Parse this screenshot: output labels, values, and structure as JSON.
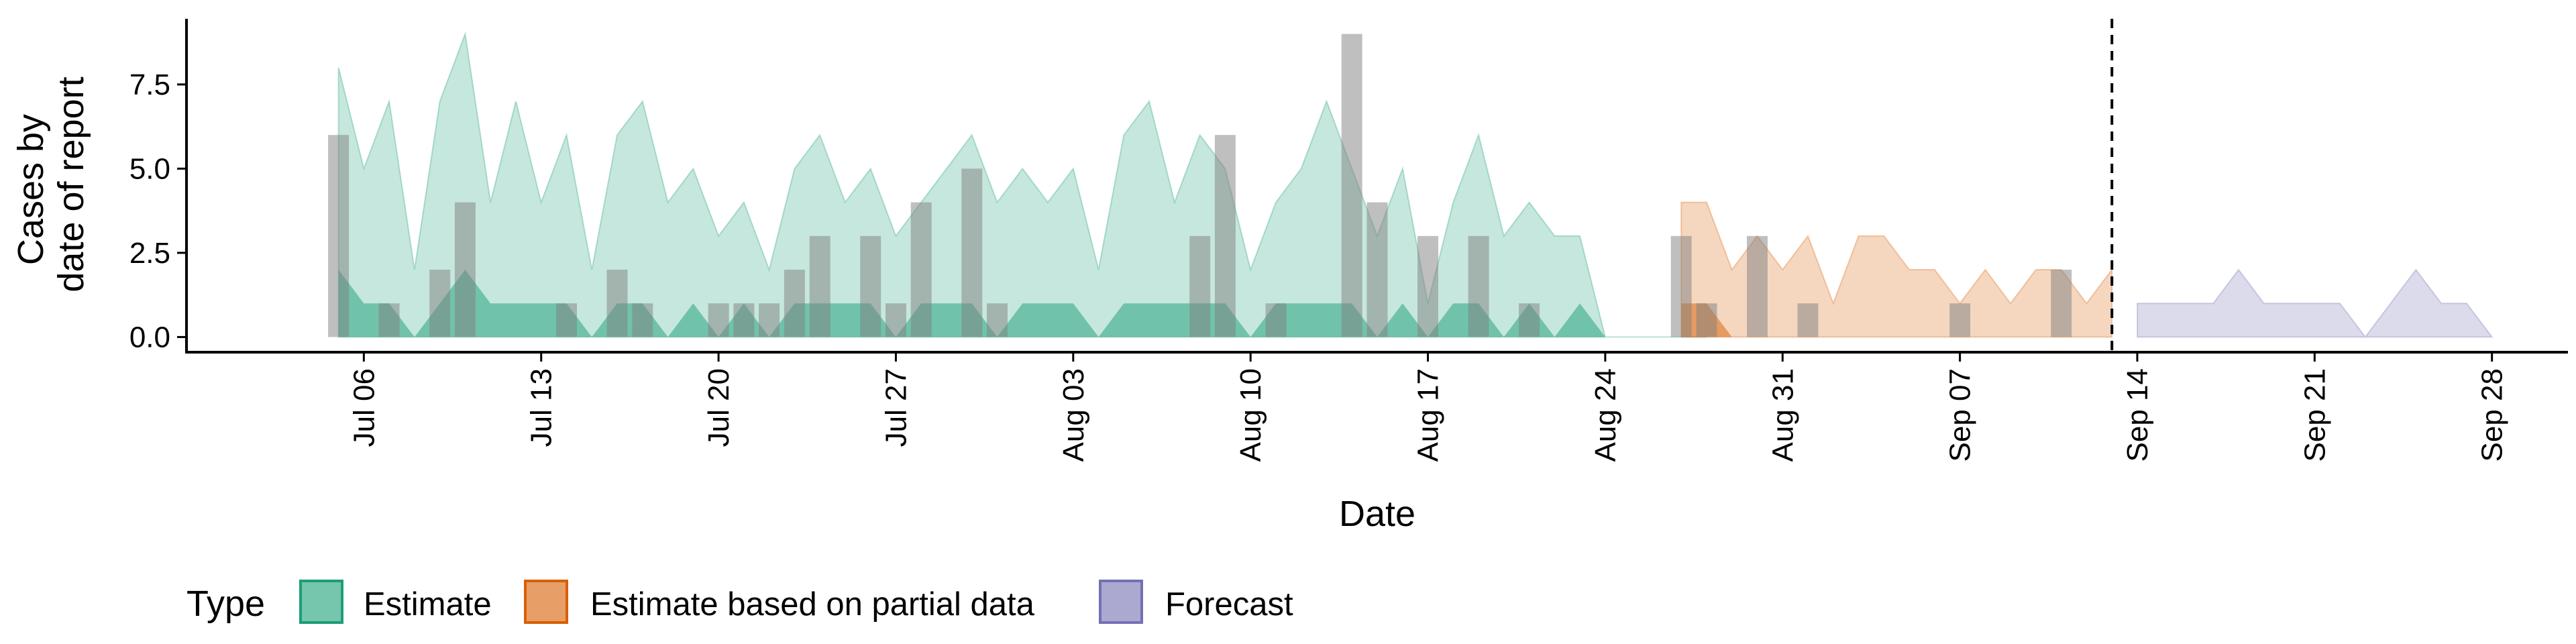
{
  "chart_data": {
    "type": "area",
    "xlabel": "Date",
    "ylabel_lines": [
      "Cases by",
      "date of report"
    ],
    "x_ticks": [
      {
        "date": "2020-07-06",
        "label": "Jul 06"
      },
      {
        "date": "2020-07-13",
        "label": "Jul 13"
      },
      {
        "date": "2020-07-20",
        "label": "Jul 20"
      },
      {
        "date": "2020-07-27",
        "label": "Jul 27"
      },
      {
        "date": "2020-08-03",
        "label": "Aug 03"
      },
      {
        "date": "2020-08-10",
        "label": "Aug 10"
      },
      {
        "date": "2020-08-17",
        "label": "Aug 17"
      },
      {
        "date": "2020-08-24",
        "label": "Aug 24"
      },
      {
        "date": "2020-08-31",
        "label": "Aug 31"
      },
      {
        "date": "2020-09-07",
        "label": "Sep 07"
      },
      {
        "date": "2020-09-14",
        "label": "Sep 14"
      },
      {
        "date": "2020-09-21",
        "label": "Sep 21"
      },
      {
        "date": "2020-09-28",
        "label": "Sep 28"
      }
    ],
    "y_ticks": [
      {
        "value": 0,
        "label": "0.0"
      },
      {
        "value": 2.5,
        "label": "2.5"
      },
      {
        "value": 5,
        "label": "5.0"
      },
      {
        "value": 7.5,
        "label": "7.5"
      }
    ],
    "xlim": [
      "2020-06-29",
      "2020-10-01"
    ],
    "ylim": [
      -0.45,
      9.45
    ],
    "vline_date": "2020-09-13",
    "legend": {
      "title": "Type",
      "position": "bottom",
      "items": [
        {
          "label": "Estimate",
          "fill": "#1b9e77",
          "stroke": "#1b9e77"
        },
        {
          "label": "Estimate based on partial data",
          "fill": "#d95f02",
          "stroke": "#d95f02"
        },
        {
          "label": "Forecast",
          "fill": "#7570b3",
          "stroke": "#7570b3"
        }
      ]
    },
    "colors": {
      "estimate": "#1b9e77",
      "partial": "#d95f02",
      "forecast": "#7570b3",
      "bars": "#808080"
    },
    "series": [
      {
        "name": "Estimate",
        "start_date": "2020-07-05",
        "lower90": [
          0,
          0,
          0,
          0,
          0,
          0,
          0,
          0,
          0,
          0,
          0,
          0,
          0,
          0,
          0,
          0,
          0,
          0,
          0,
          0,
          0,
          0,
          0,
          0,
          0,
          0,
          0,
          0,
          0,
          0,
          0,
          0,
          0,
          0,
          0,
          0,
          0,
          0,
          0,
          0,
          0,
          0,
          0,
          0,
          0,
          0,
          0,
          0,
          0,
          0,
          0,
          0,
          0,
          0,
          0
        ],
        "upper90": [
          8,
          5,
          7,
          2,
          7,
          9,
          4,
          7,
          4,
          6,
          2,
          6,
          7,
          4,
          5,
          3,
          4,
          2,
          5,
          6,
          4,
          5,
          3,
          4,
          5,
          6,
          4,
          5,
          4,
          5,
          2,
          6,
          7,
          4,
          6,
          5,
          2,
          4,
          5,
          7,
          5,
          3,
          5,
          1,
          4,
          6,
          3,
          4,
          3,
          3,
          0,
          0,
          0,
          0,
          0
        ],
        "lower50": [
          0,
          0,
          0,
          0,
          0,
          0,
          0,
          0,
          0,
          0,
          0,
          0,
          0,
          0,
          0,
          0,
          0,
          0,
          0,
          0,
          0,
          0,
          0,
          0,
          0,
          0,
          0,
          0,
          0,
          0,
          0,
          0,
          0,
          0,
          0,
          0,
          0,
          0,
          0,
          0,
          0,
          0,
          0,
          0,
          0,
          0,
          0,
          0,
          0,
          0,
          0,
          0,
          0,
          0,
          0
        ],
        "upper50": [
          2,
          1,
          1,
          0,
          1,
          2,
          1,
          1,
          1,
          1,
          0,
          1,
          1,
          0,
          1,
          0,
          1,
          0,
          1,
          1,
          1,
          1,
          0,
          1,
          1,
          1,
          0,
          1,
          1,
          1,
          0,
          1,
          1,
          1,
          1,
          1,
          0,
          1,
          1,
          1,
          1,
          0,
          1,
          0,
          1,
          1,
          0,
          1,
          0,
          1,
          0,
          0,
          0,
          0,
          0
        ]
      },
      {
        "name": "Estimate based on partial data",
        "start_date": "2020-08-27",
        "lower90": [
          0,
          0,
          0,
          0,
          0,
          0,
          0,
          0,
          0,
          0,
          0,
          0,
          0,
          0,
          0,
          0,
          0,
          0
        ],
        "upper90": [
          4,
          4,
          2,
          3,
          2,
          3,
          1,
          3,
          3,
          2,
          2,
          1,
          2,
          1,
          2,
          2,
          1,
          2
        ],
        "lower50": [
          0,
          0,
          0,
          0,
          0,
          0,
          0,
          0,
          0,
          0,
          0,
          0,
          0,
          0,
          0,
          0,
          0,
          0
        ],
        "upper50": [
          1,
          1,
          0,
          0,
          0,
          0,
          0,
          0,
          0,
          0,
          0,
          0,
          0,
          0,
          0,
          0,
          0,
          0
        ]
      },
      {
        "name": "Forecast",
        "start_date": "2020-09-14",
        "lower90": [
          0,
          0,
          0,
          0,
          0,
          0,
          0,
          0,
          0,
          0,
          0,
          0,
          0,
          0,
          0
        ],
        "upper90": [
          1,
          1,
          1,
          1,
          2,
          1,
          1,
          1,
          1,
          0,
          1,
          2,
          1,
          1,
          0
        ],
        "lower50": [
          0,
          0,
          0,
          0,
          0,
          0,
          0,
          0,
          0,
          0,
          0,
          0,
          0,
          0,
          0
        ],
        "upper50": [
          0,
          0,
          0,
          0,
          0,
          0,
          0,
          0,
          0,
          0,
          0,
          0,
          0,
          0,
          0
        ]
      }
    ],
    "reported_cases": [
      {
        "date": "2020-07-05",
        "value": 6
      },
      {
        "date": "2020-07-07",
        "value": 1
      },
      {
        "date": "2020-07-09",
        "value": 2
      },
      {
        "date": "2020-07-10",
        "value": 4
      },
      {
        "date": "2020-07-14",
        "value": 1
      },
      {
        "date": "2020-07-16",
        "value": 2
      },
      {
        "date": "2020-07-17",
        "value": 1
      },
      {
        "date": "2020-07-20",
        "value": 1
      },
      {
        "date": "2020-07-21",
        "value": 1
      },
      {
        "date": "2020-07-22",
        "value": 1
      },
      {
        "date": "2020-07-23",
        "value": 2
      },
      {
        "date": "2020-07-24",
        "value": 3
      },
      {
        "date": "2020-07-26",
        "value": 3
      },
      {
        "date": "2020-07-27",
        "value": 1
      },
      {
        "date": "2020-07-28",
        "value": 4
      },
      {
        "date": "2020-07-30",
        "value": 5
      },
      {
        "date": "2020-07-31",
        "value": 1
      },
      {
        "date": "2020-08-08",
        "value": 3
      },
      {
        "date": "2020-08-09",
        "value": 6
      },
      {
        "date": "2020-08-11",
        "value": 1
      },
      {
        "date": "2020-08-14",
        "value": 9
      },
      {
        "date": "2020-08-15",
        "value": 4
      },
      {
        "date": "2020-08-17",
        "value": 3
      },
      {
        "date": "2020-08-19",
        "value": 3
      },
      {
        "date": "2020-08-21",
        "value": 1
      },
      {
        "date": "2020-08-27",
        "value": 3
      },
      {
        "date": "2020-08-28",
        "value": 1
      },
      {
        "date": "2020-08-30",
        "value": 3
      },
      {
        "date": "2020-09-01",
        "value": 1
      },
      {
        "date": "2020-09-07",
        "value": 1
      },
      {
        "date": "2020-09-11",
        "value": 2
      }
    ]
  }
}
